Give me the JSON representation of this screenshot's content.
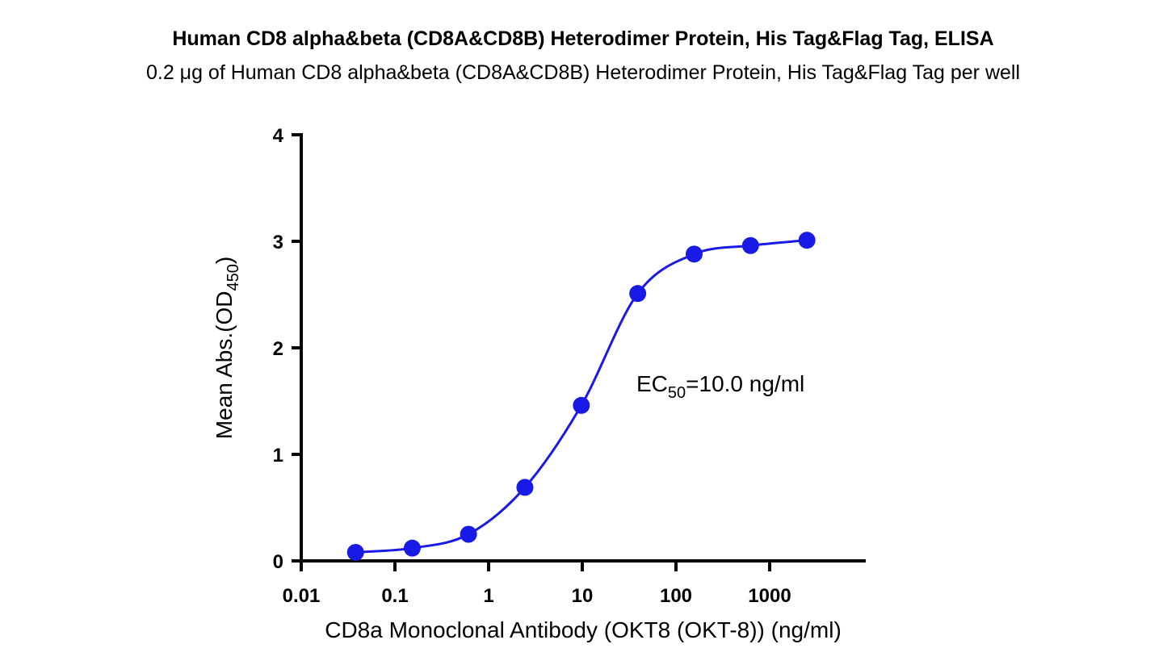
{
  "chart_data": {
    "type": "scatter",
    "title": "Human CD8 alpha&beta (CD8A&CD8B) Heterodimer Protein, His Tag&Flag Tag, ELISA",
    "subtitle": "0.2 μg of Human CD8 alpha&beta (CD8A&CD8B) Heterodimer Protein, His Tag&Flag Tag per well",
    "x_label": "CD8a Monoclonal Antibody (OKT8 (OKT-8)) (ng/ml)",
    "y_label": {
      "text": "Mean Abs.(OD",
      "sub": "450",
      "end": ")"
    },
    "annotation": {
      "text": "EC",
      "sub": "50",
      "end": "=10.0 ng/ml"
    },
    "x": [
      0.038,
      0.153,
      0.61,
      2.44,
      9.77,
      39.06,
      156.25,
      625,
      2500
    ],
    "series": [
      {
        "color": "#1a1ae6",
        "values": [
          0.08,
          0.12,
          0.25,
          0.69,
          1.46,
          2.51,
          2.88,
          2.96,
          3.01
        ]
      }
    ],
    "x_log": true,
    "xlim": [
      0.01,
      10000
    ],
    "xticks": [
      0.01,
      0.1,
      1,
      10,
      100,
      1000
    ],
    "ylim": [
      0,
      4
    ],
    "yticks": [
      0,
      1,
      2,
      3,
      4
    ],
    "smooth_line": true
  }
}
